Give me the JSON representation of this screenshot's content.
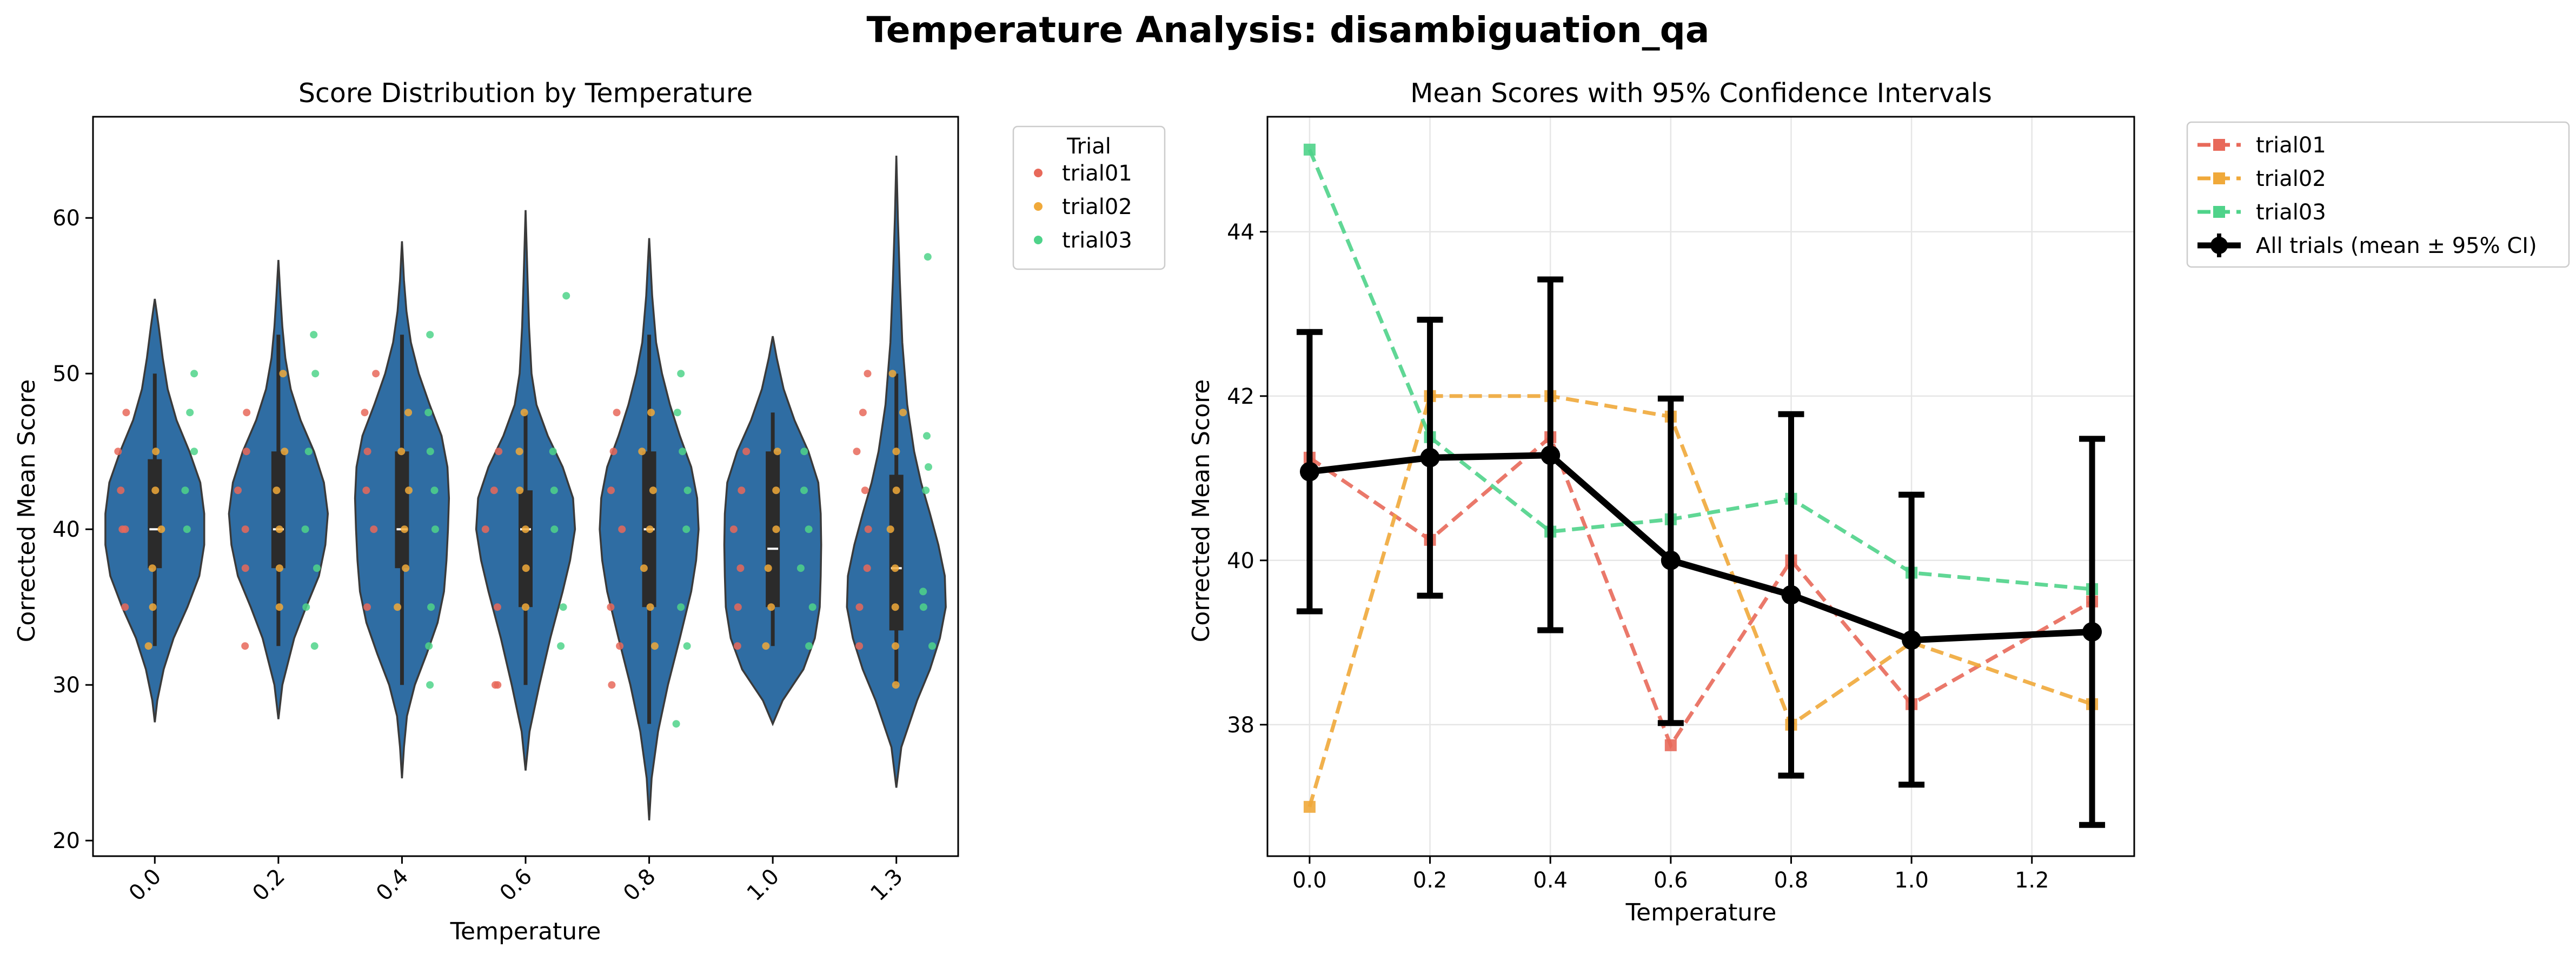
{
  "figure": {
    "title": "Temperature Analysis: disambiguation_qa"
  },
  "chart_data": [
    {
      "type": "violin",
      "title": "Score Distribution by Temperature",
      "xlabel": "Temperature",
      "ylabel": "Corrected Mean Score",
      "categories": [
        "0.0",
        "0.2",
        "0.4",
        "0.6",
        "0.8",
        "1.0",
        "1.3"
      ],
      "ylim": [
        19,
        66.5
      ],
      "yticks": [
        20,
        30,
        40,
        50,
        60
      ],
      "grid": false,
      "legend": {
        "title": "Trial",
        "placement": "outside-top-right",
        "entries": [
          "trial01",
          "trial02",
          "trial03"
        ]
      },
      "series_colors": {
        "trial01": "#e8695a",
        "trial02": "#f0a93a",
        "trial03": "#4fd38a"
      },
      "violin_color": "#2f6da3",
      "violins": [
        {
          "category": "0.0",
          "median": 40.0,
          "q1": 37.5,
          "q3": 44.5,
          "whisker_low": 32.5,
          "whisker_high": 50.0,
          "profile": [
            [
              27.6,
              0
            ],
            [
              29,
              0.05
            ],
            [
              31,
              0.18
            ],
            [
              33,
              0.38
            ],
            [
              35,
              0.66
            ],
            [
              37,
              0.9
            ],
            [
              39,
              1.0
            ],
            [
              41,
              1.0
            ],
            [
              43,
              0.92
            ],
            [
              45,
              0.7
            ],
            [
              47,
              0.44
            ],
            [
              49,
              0.26
            ],
            [
              51,
              0.16
            ],
            [
              53,
              0.08
            ],
            [
              54.8,
              0
            ]
          ]
        },
        {
          "category": "0.2",
          "median": 40.0,
          "q1": 37.5,
          "q3": 45.0,
          "whisker_low": 32.5,
          "whisker_high": 52.5,
          "profile": [
            [
              27.8,
              0
            ],
            [
              30,
              0.08
            ],
            [
              33,
              0.32
            ],
            [
              35,
              0.56
            ],
            [
              37,
              0.82
            ],
            [
              39,
              0.95
            ],
            [
              41,
              1.0
            ],
            [
              43,
              0.92
            ],
            [
              45,
              0.72
            ],
            [
              47,
              0.45
            ],
            [
              49,
              0.25
            ],
            [
              51,
              0.14
            ],
            [
              53,
              0.08
            ],
            [
              55,
              0.04
            ],
            [
              57.3,
              0
            ]
          ]
        },
        {
          "category": "0.4",
          "median": 40.0,
          "q1": 37.5,
          "q3": 45.0,
          "whisker_low": 30.0,
          "whisker_high": 52.5,
          "profile": [
            [
              24,
              0
            ],
            [
              26,
              0.04
            ],
            [
              28,
              0.1
            ],
            [
              30,
              0.26
            ],
            [
              32,
              0.5
            ],
            [
              34,
              0.72
            ],
            [
              36,
              0.85
            ],
            [
              38,
              0.9
            ],
            [
              40,
              0.93
            ],
            [
              42,
              0.95
            ],
            [
              44,
              0.92
            ],
            [
              46,
              0.8
            ],
            [
              48,
              0.56
            ],
            [
              50,
              0.34
            ],
            [
              52,
              0.18
            ],
            [
              54,
              0.09
            ],
            [
              56,
              0.04
            ],
            [
              58.5,
              0
            ]
          ]
        },
        {
          "category": "0.6",
          "median": 40.0,
          "q1": 35.0,
          "q3": 42.5,
          "whisker_low": 30.0,
          "whisker_high": 47.5,
          "profile": [
            [
              24.5,
              0
            ],
            [
              27,
              0.08
            ],
            [
              30,
              0.28
            ],
            [
              33,
              0.5
            ],
            [
              36,
              0.75
            ],
            [
              38,
              0.9
            ],
            [
              40,
              1.0
            ],
            [
              42,
              0.96
            ],
            [
              44,
              0.75
            ],
            [
              46,
              0.45
            ],
            [
              48,
              0.22
            ],
            [
              50,
              0.12
            ],
            [
              53,
              0.07
            ],
            [
              56,
              0.04
            ],
            [
              60.5,
              0
            ]
          ]
        },
        {
          "category": "0.8",
          "median": 40.0,
          "q1": 35.0,
          "q3": 45.0,
          "whisker_low": 27.5,
          "whisker_high": 52.5,
          "profile": [
            [
              21.3,
              0
            ],
            [
              24,
              0.05
            ],
            [
              27,
              0.18
            ],
            [
              30,
              0.38
            ],
            [
              33,
              0.62
            ],
            [
              36,
              0.85
            ],
            [
              38,
              0.95
            ],
            [
              40,
              1.0
            ],
            [
              42,
              0.97
            ],
            [
              44,
              0.85
            ],
            [
              46,
              0.62
            ],
            [
              48,
              0.42
            ],
            [
              50,
              0.26
            ],
            [
              52,
              0.14
            ],
            [
              55,
              0.06
            ],
            [
              58.7,
              0
            ]
          ]
        },
        {
          "category": "1.0",
          "median": 38.75,
          "q1": 35.0,
          "q3": 45.0,
          "whisker_low": 32.5,
          "whisker_high": 47.5,
          "profile": [
            [
              27.5,
              0
            ],
            [
              29,
              0.2
            ],
            [
              31,
              0.62
            ],
            [
              33,
              0.85
            ],
            [
              35,
              0.95
            ],
            [
              37,
              0.97
            ],
            [
              39,
              0.98
            ],
            [
              41,
              0.97
            ],
            [
              43,
              0.92
            ],
            [
              45,
              0.72
            ],
            [
              47,
              0.44
            ],
            [
              49,
              0.22
            ],
            [
              51,
              0.08
            ],
            [
              52.4,
              0
            ]
          ]
        },
        {
          "category": "1.3",
          "median": 37.5,
          "q1": 33.5,
          "q3": 43.5,
          "whisker_low": 30.0,
          "whisker_high": 50.0,
          "profile": [
            [
              23.4,
              0
            ],
            [
              26,
              0.1
            ],
            [
              29,
              0.42
            ],
            [
              31,
              0.68
            ],
            [
              33,
              0.88
            ],
            [
              35,
              1.0
            ],
            [
              37,
              0.98
            ],
            [
              39,
              0.85
            ],
            [
              41,
              0.68
            ],
            [
              43,
              0.5
            ],
            [
              45,
              0.36
            ],
            [
              48,
              0.22
            ],
            [
              52,
              0.12
            ],
            [
              56,
              0.07
            ],
            [
              60,
              0.03
            ],
            [
              64,
              0
            ]
          ]
        }
      ],
      "points": {
        "trial01": [
          [
            0,
            35
          ],
          [
            0,
            40
          ],
          [
            0,
            42.5
          ],
          [
            0,
            45
          ],
          [
            0,
            47.5
          ],
          [
            0,
            40
          ],
          [
            1,
            32.5
          ],
          [
            1,
            37.5
          ],
          [
            1,
            40
          ],
          [
            1,
            42.5
          ],
          [
            1,
            45
          ],
          [
            1,
            47.5
          ],
          [
            2,
            35
          ],
          [
            2,
            40
          ],
          [
            2,
            42.5
          ],
          [
            2,
            45
          ],
          [
            2,
            47.5
          ],
          [
            2,
            50
          ],
          [
            3,
            30
          ],
          [
            3,
            30
          ],
          [
            3,
            35
          ],
          [
            3,
            40
          ],
          [
            3,
            42.5
          ],
          [
            3,
            45
          ],
          [
            4,
            30
          ],
          [
            4,
            32.5
          ],
          [
            4,
            35
          ],
          [
            4,
            40
          ],
          [
            4,
            42.5
          ],
          [
            4,
            45
          ],
          [
            4,
            47.5
          ],
          [
            5,
            32.5
          ],
          [
            5,
            35
          ],
          [
            5,
            37.5
          ],
          [
            5,
            40
          ],
          [
            5,
            42.5
          ],
          [
            5,
            45
          ],
          [
            6,
            32.5
          ],
          [
            6,
            35
          ],
          [
            6,
            37.5
          ],
          [
            6,
            40
          ],
          [
            6,
            42.5
          ],
          [
            6,
            45
          ],
          [
            6,
            47.5
          ],
          [
            6,
            50
          ]
        ],
        "trial02": [
          [
            0,
            32.5
          ],
          [
            0,
            35
          ],
          [
            0,
            37.5
          ],
          [
            0,
            40
          ],
          [
            0,
            42.5
          ],
          [
            0,
            45
          ],
          [
            1,
            35
          ],
          [
            1,
            37.5
          ],
          [
            1,
            40
          ],
          [
            1,
            42.5
          ],
          [
            1,
            45
          ],
          [
            1,
            50
          ],
          [
            2,
            35
          ],
          [
            2,
            37.5
          ],
          [
            2,
            40
          ],
          [
            2,
            42.5
          ],
          [
            2,
            45
          ],
          [
            2,
            47.5
          ],
          [
            3,
            35
          ],
          [
            3,
            37.5
          ],
          [
            3,
            40
          ],
          [
            3,
            42.5
          ],
          [
            3,
            45
          ],
          [
            3,
            47.5
          ],
          [
            4,
            32.5
          ],
          [
            4,
            35
          ],
          [
            4,
            37.5
          ],
          [
            4,
            40
          ],
          [
            4,
            42.5
          ],
          [
            4,
            45
          ],
          [
            4,
            47.5
          ],
          [
            5,
            32.5
          ],
          [
            5,
            35
          ],
          [
            5,
            37.5
          ],
          [
            5,
            40
          ],
          [
            5,
            42.5
          ],
          [
            5,
            45
          ],
          [
            6,
            30
          ],
          [
            6,
            32.5
          ],
          [
            6,
            35
          ],
          [
            6,
            37.5
          ],
          [
            6,
            40
          ],
          [
            6,
            42.5
          ],
          [
            6,
            45
          ],
          [
            6,
            47.5
          ],
          [
            6,
            50
          ]
        ],
        "trial03": [
          [
            0,
            40
          ],
          [
            0,
            42.5
          ],
          [
            0,
            45
          ],
          [
            0,
            47.5
          ],
          [
            0,
            50
          ],
          [
            1,
            32.5
          ],
          [
            1,
            35
          ],
          [
            1,
            37.5
          ],
          [
            1,
            40
          ],
          [
            1,
            45
          ],
          [
            1,
            50
          ],
          [
            1,
            52.5
          ],
          [
            2,
            30
          ],
          [
            2,
            32.5
          ],
          [
            2,
            35
          ],
          [
            2,
            40
          ],
          [
            2,
            42.5
          ],
          [
            2,
            45
          ],
          [
            2,
            47.5
          ],
          [
            2,
            52.5
          ],
          [
            3,
            32.5
          ],
          [
            3,
            35
          ],
          [
            3,
            40
          ],
          [
            3,
            42.5
          ],
          [
            3,
            45
          ],
          [
            3,
            55
          ],
          [
            4,
            27.5
          ],
          [
            4,
            32.5
          ],
          [
            4,
            35
          ],
          [
            4,
            40
          ],
          [
            4,
            42.5
          ],
          [
            4,
            45
          ],
          [
            4,
            47.5
          ],
          [
            4,
            50
          ],
          [
            5,
            32.5
          ],
          [
            5,
            35
          ],
          [
            5,
            37.5
          ],
          [
            5,
            40
          ],
          [
            5,
            42.5
          ],
          [
            5,
            45
          ],
          [
            6,
            32.5
          ],
          [
            6,
            35
          ],
          [
            6,
            36
          ],
          [
            6,
            42.5
          ],
          [
            6,
            44
          ],
          [
            6,
            46
          ],
          [
            6,
            57.5
          ]
        ]
      }
    },
    {
      "type": "line",
      "title": "Mean Scores with 95% Confidence Intervals",
      "xlabel": "Temperature",
      "ylabel": "Corrected Mean Score",
      "x": [
        0.0,
        0.2,
        0.4,
        0.6,
        0.8,
        1.0,
        1.3
      ],
      "xlim": [
        -0.07,
        1.37
      ],
      "ylim": [
        36.4,
        45.4
      ],
      "xticks": [
        0.0,
        0.2,
        0.4,
        0.6,
        0.8,
        1.0,
        1.2
      ],
      "xtick_labels": [
        "0.0",
        "0.2",
        "0.4",
        "0.6",
        "0.8",
        "1.0",
        "1.2"
      ],
      "yticks": [
        38,
        40,
        42,
        44
      ],
      "grid": true,
      "legend": {
        "placement": "outside-top-right"
      },
      "series": [
        {
          "name": "trial01",
          "color": "#e8695a",
          "style": "dashed",
          "marker": "square",
          "values": [
            41.25,
            40.25,
            41.5,
            37.75,
            40.0,
            38.25,
            39.5
          ]
        },
        {
          "name": "trial02",
          "color": "#f0a93a",
          "style": "dashed",
          "marker": "square",
          "values": [
            37.0,
            42.0,
            42.0,
            41.75,
            38.0,
            39.0,
            38.25
          ]
        },
        {
          "name": "trial03",
          "color": "#4fd38a",
          "style": "dashed",
          "marker": "square",
          "values": [
            45.0,
            41.5,
            40.35,
            40.5,
            40.75,
            39.85,
            39.65
          ]
        },
        {
          "name": "All trials (mean ± 95% CI)",
          "color": "#000000",
          "style": "solid",
          "marker": "circle",
          "values": [
            41.08,
            41.25,
            41.28,
            40.0,
            39.58,
            39.03,
            39.13
          ],
          "ci_low": [
            39.38,
            39.57,
            39.15,
            38.02,
            37.38,
            37.27,
            36.78
          ],
          "ci_high": [
            42.78,
            42.93,
            43.42,
            41.97,
            41.78,
            40.8,
            41.48
          ]
        }
      ]
    }
  ]
}
